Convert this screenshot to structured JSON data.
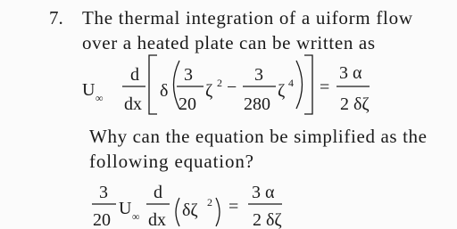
{
  "problem": {
    "number": "7.",
    "statement": [
      "The thermal integration of a uiform flow",
      "over a heated plate can be written as"
    ],
    "question": [
      "Why can the equation be simplified as the",
      "following equation?"
    ]
  },
  "equation1": {
    "velocity": "U",
    "velocity_sub": "∞",
    "d_num": "d",
    "d_den": "dx",
    "delta": "δ",
    "frac1_num": "3",
    "frac1_den": "20",
    "zeta1": "ζ",
    "exp1": "2",
    "minus": "−",
    "frac2_num": "3",
    "frac2_den": "280",
    "zeta2": "ζ",
    "exp2": "4",
    "equals": "=",
    "rhs_num": "3 α",
    "rhs_den": "2 δζ"
  },
  "equation2": {
    "frac_num": "3",
    "frac_den": "20",
    "velocity": "U",
    "velocity_sub": "∞",
    "d_num": "d",
    "d_den": "dx",
    "term": "δζ",
    "exp": "2",
    "equals": "=",
    "rhs_num": "3 α",
    "rhs_den": "2 δζ"
  }
}
